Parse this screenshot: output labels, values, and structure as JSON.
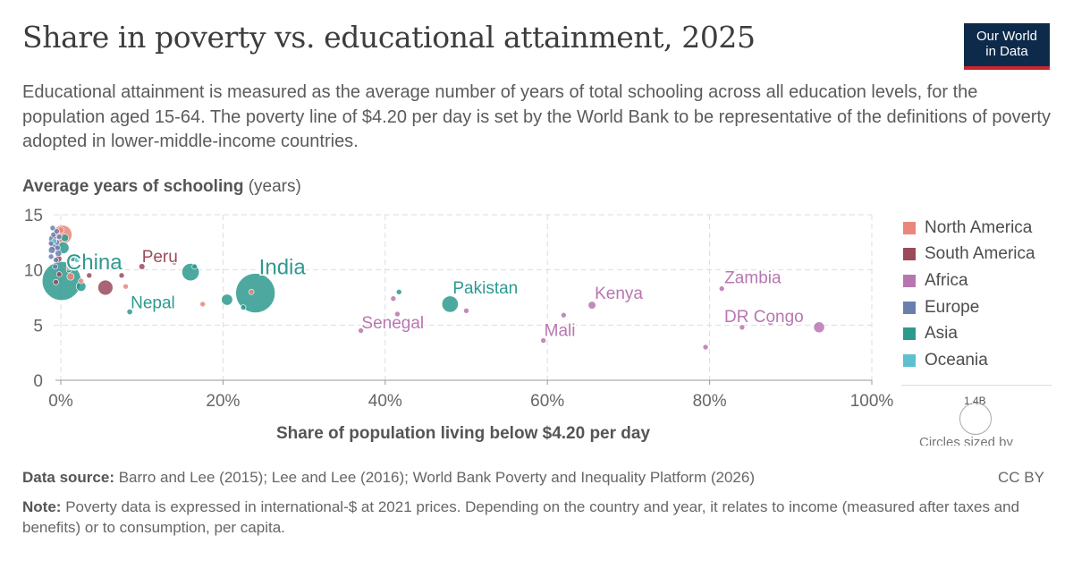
{
  "header": {
    "title": "Share in poverty vs. educational attainment, 2025",
    "logo_line1": "Our World",
    "logo_line2": "in Data",
    "subtitle": "Educational attainment is measured as the average number of years of total schooling across all education levels, for the population aged 15-64. The poverty line of $4.20 per day is set by the World Bank to be representative of the definitions of poverty adopted in lower-middle-income countries."
  },
  "chart_data": {
    "type": "scatter",
    "title": "Share in poverty vs. educational attainment, 2025",
    "xlabel": "Share of population living below $4.20 per day",
    "ylabel": "Average years of schooling",
    "ylabel_unit": "(years)",
    "xlim": [
      0,
      100
    ],
    "ylim": [
      0,
      15
    ],
    "x_ticks": [
      0,
      20,
      40,
      60,
      80,
      100
    ],
    "x_tick_labels": [
      "0%",
      "20%",
      "40%",
      "60%",
      "80%",
      "100%"
    ],
    "y_ticks": [
      0,
      5,
      10,
      15
    ],
    "y_tick_labels": [
      "0",
      "5",
      "10",
      "15"
    ],
    "grid": true,
    "legend_position": "right",
    "legend": [
      {
        "name": "North America",
        "color": "#e8877a"
      },
      {
        "name": "South America",
        "color": "#9a4a5a"
      },
      {
        "name": "Africa",
        "color": "#b876b0"
      },
      {
        "name": "Europe",
        "color": "#6b7fae"
      },
      {
        "name": "Asia",
        "color": "#2e9a8e"
      },
      {
        "name": "Oceania",
        "color": "#5ebfcf"
      }
    ],
    "size_legend_label": "1.4B",
    "size_legend_note": "Circles sized by",
    "labeled_points": [
      {
        "label": "China",
        "x": 0.1,
        "y": 9.0,
        "region": "Asia",
        "pop": 1410
      },
      {
        "label": "India",
        "x": 24.0,
        "y": 7.9,
        "region": "Asia",
        "pop": 1450
      },
      {
        "label": "Peru",
        "x": 10.0,
        "y": 10.3,
        "region": "South America",
        "pop": 34
      },
      {
        "label": "Nepal",
        "x": 8.5,
        "y": 6.2,
        "region": "Asia",
        "pop": 30
      },
      {
        "label": "Pakistan",
        "x": 48.0,
        "y": 6.9,
        "region": "Asia",
        "pop": 250
      },
      {
        "label": "Senegal",
        "x": 41.5,
        "y": 6.0,
        "region": "Africa",
        "pop": 18
      },
      {
        "label": "Kenya",
        "x": 65.5,
        "y": 6.8,
        "region": "Africa",
        "pop": 56
      },
      {
        "label": "Mali",
        "x": 59.5,
        "y": 3.6,
        "region": "Africa",
        "pop": 24
      },
      {
        "label": "Zambia",
        "x": 81.5,
        "y": 8.3,
        "region": "Africa",
        "pop": 21
      },
      {
        "label": "DR Congo",
        "x": 93.5,
        "y": 4.8,
        "region": "Africa",
        "pop": 110
      }
    ],
    "points": [
      {
        "x": -1.0,
        "y": 12.8,
        "region": "Europe",
        "pop": 60
      },
      {
        "x": -0.8,
        "y": 12.2,
        "region": "Europe",
        "pop": 80
      },
      {
        "x": -1.1,
        "y": 11.8,
        "region": "Europe",
        "pop": 45
      },
      {
        "x": -0.5,
        "y": 12.5,
        "region": "Europe",
        "pop": 30
      },
      {
        "x": -0.3,
        "y": 11.5,
        "region": "Europe",
        "pop": 40
      },
      {
        "x": -0.9,
        "y": 13.2,
        "region": "Europe",
        "pop": 10
      },
      {
        "x": -0.6,
        "y": 10.9,
        "region": "Europe",
        "pop": 20
      },
      {
        "x": -1.2,
        "y": 11.2,
        "region": "Europe",
        "pop": 10
      },
      {
        "x": -0.2,
        "y": 13.0,
        "region": "Europe",
        "pop": 10
      },
      {
        "x": -1.0,
        "y": 13.8,
        "region": "Europe",
        "pop": 5
      },
      {
        "x": -0.7,
        "y": 10.3,
        "region": "Europe",
        "pop": 8
      },
      {
        "x": -0.4,
        "y": 12.0,
        "region": "Europe",
        "pop": 15
      },
      {
        "x": -1.2,
        "y": 12.4,
        "region": "Europe",
        "pop": 6
      },
      {
        "x": -0.5,
        "y": 13.5,
        "region": "Europe",
        "pop": 4
      },
      {
        "x": 0.2,
        "y": 13.2,
        "region": "North America",
        "pop": 340
      },
      {
        "x": 0.0,
        "y": 13.6,
        "region": "North America",
        "pop": 40
      },
      {
        "x": 1.2,
        "y": 9.4,
        "region": "North America",
        "pop": 50
      },
      {
        "x": 2.5,
        "y": 9.0,
        "region": "North America",
        "pop": 10
      },
      {
        "x": 8.0,
        "y": 8.5,
        "region": "North America",
        "pop": 8
      },
      {
        "x": 17.5,
        "y": 6.9,
        "region": "North America",
        "pop": 10
      },
      {
        "x": 23.5,
        "y": 8.0,
        "region": "North America",
        "pop": 11
      },
      {
        "x": 6.5,
        "y": 10.4,
        "region": "North America",
        "pop": 5
      },
      {
        "x": 1.0,
        "y": 10.2,
        "region": "North America",
        "pop": 6
      },
      {
        "x": -0.3,
        "y": 11.0,
        "region": "South America",
        "pop": 45
      },
      {
        "x": -0.2,
        "y": 9.6,
        "region": "South America",
        "pop": 20
      },
      {
        "x": 5.5,
        "y": 8.4,
        "region": "South America",
        "pop": 210
      },
      {
        "x": 3.5,
        "y": 9.5,
        "region": "South America",
        "pop": 12
      },
      {
        "x": 7.5,
        "y": 9.5,
        "region": "South America",
        "pop": 18
      },
      {
        "x": 14.0,
        "y": 10.7,
        "region": "South America",
        "pop": 12
      },
      {
        "x": -0.6,
        "y": 8.9,
        "region": "South America",
        "pop": 7
      },
      {
        "x": 0.5,
        "y": 12.9,
        "region": "Asia",
        "pop": 52
      },
      {
        "x": 0.3,
        "y": 12.0,
        "region": "Asia",
        "pop": 125
      },
      {
        "x": 1.5,
        "y": 11.0,
        "region": "Asia",
        "pop": 20
      },
      {
        "x": 1.0,
        "y": 10.0,
        "region": "Asia",
        "pop": 15
      },
      {
        "x": 2.5,
        "y": 8.5,
        "region": "Asia",
        "pop": 90
      },
      {
        "x": 6.5,
        "y": 10.3,
        "region": "Asia",
        "pop": 10
      },
      {
        "x": 16.0,
        "y": 9.8,
        "region": "Asia",
        "pop": 280
      },
      {
        "x": 16.5,
        "y": 10.3,
        "region": "Asia",
        "pop": 6
      },
      {
        "x": 20.5,
        "y": 7.3,
        "region": "Asia",
        "pop": 115
      },
      {
        "x": 22.5,
        "y": 6.6,
        "region": "Asia",
        "pop": 8
      },
      {
        "x": 41.7,
        "y": 8.0,
        "region": "Asia",
        "pop": 8
      },
      {
        "x": -0.8,
        "y": 12.6,
        "region": "Oceania",
        "pop": 27
      },
      {
        "x": 2.0,
        "y": 10.9,
        "region": "Oceania",
        "pop": 5
      },
      {
        "x": 37.0,
        "y": 4.5,
        "region": "Africa",
        "pop": 18
      },
      {
        "x": 41.0,
        "y": 7.4,
        "region": "Africa",
        "pop": 12
      },
      {
        "x": 50.0,
        "y": 6.3,
        "region": "Africa",
        "pop": 20
      },
      {
        "x": 62.0,
        "y": 5.9,
        "region": "Africa",
        "pop": 14
      },
      {
        "x": 79.5,
        "y": 3.0,
        "region": "Africa",
        "pop": 18
      },
      {
        "x": 84.0,
        "y": 4.8,
        "region": "Africa",
        "pop": 20
      },
      {
        "x": 87.5,
        "y": 5.2,
        "region": "Africa",
        "pop": 5
      },
      {
        "x": 12.0,
        "y": 10.8,
        "region": "Africa",
        "pop": 5
      }
    ]
  },
  "footer": {
    "source_label": "Data source:",
    "source_text": "Barro and Lee (2015); Lee and Lee (2016); World Bank Poverty and Inequality Platform (2026)",
    "license": "CC BY",
    "note_label": "Note:",
    "note_text": "Poverty data is expressed in international-$ at 2021 prices. Depending on the country and year, it relates to income (measured after taxes and benefits) or to consumption, per capita."
  }
}
